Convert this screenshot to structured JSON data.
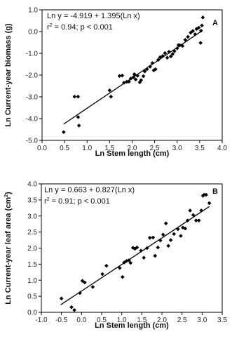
{
  "chart_data": [
    {
      "type": "scatter",
      "panel_label": "A",
      "xlabel": "Ln Stem length (cm)",
      "ylabel": "Ln Current-year biomass (g)",
      "equation": "Ln y = -4.919 + 1.395(Ln x)",
      "stats": "r² = 0.94; p < 0.001",
      "stats_parts": {
        "r": "r",
        "sup": "2",
        "rest": " = 0.94; p < 0.001"
      },
      "xlim": [
        0.0,
        4.0
      ],
      "ylim": [
        -5.0,
        1.0
      ],
      "xticks": [
        "0.0",
        "0.5",
        "1.0",
        "1.5",
        "2.0",
        "2.5",
        "3.0",
        "3.5",
        "4.0"
      ],
      "yticks": [
        "1.0",
        "0.0",
        "-1.0",
        "-2.0",
        "-3.0",
        "-4.0",
        "-5.0"
      ],
      "fit": {
        "intercept": -4.919,
        "slope": 1.395,
        "x_range": [
          0.48,
          3.55
        ]
      },
      "points": [
        [
          0.48,
          -4.62
        ],
        [
          0.72,
          -2.99
        ],
        [
          0.8,
          -2.99
        ],
        [
          0.8,
          -3.93
        ],
        [
          0.82,
          -4.32
        ],
        [
          1.5,
          -2.7
        ],
        [
          1.53,
          -2.99
        ],
        [
          1.72,
          -2.04
        ],
        [
          1.78,
          -2.02
        ],
        [
          1.82,
          -2.35
        ],
        [
          1.88,
          -2.31
        ],
        [
          1.93,
          -2.3
        ],
        [
          1.97,
          -2.16
        ],
        [
          2.03,
          -2.1
        ],
        [
          2.05,
          -1.96
        ],
        [
          2.08,
          -2.2
        ],
        [
          2.12,
          -2.03
        ],
        [
          2.17,
          -2.33
        ],
        [
          2.2,
          -2.23
        ],
        [
          2.25,
          -2.05
        ],
        [
          2.28,
          -1.83
        ],
        [
          2.33,
          -1.73
        ],
        [
          2.4,
          -1.61
        ],
        [
          2.45,
          -1.45
        ],
        [
          2.48,
          -1.78
        ],
        [
          2.52,
          -1.73
        ],
        [
          2.58,
          -1.3
        ],
        [
          2.62,
          -1.18
        ],
        [
          2.68,
          -1.12
        ],
        [
          2.73,
          -0.99
        ],
        [
          2.78,
          -1.2
        ],
        [
          2.82,
          -0.93
        ],
        [
          2.86,
          -1.14
        ],
        [
          2.9,
          -1.03
        ],
        [
          2.94,
          -0.9
        ],
        [
          3.0,
          -0.77
        ],
        [
          3.03,
          -0.62
        ],
        [
          3.06,
          -0.63
        ],
        [
          3.12,
          -0.66
        ],
        [
          3.18,
          -0.38
        ],
        [
          3.24,
          -0.24
        ],
        [
          3.3,
          -0.05
        ],
        [
          3.35,
          0.03
        ],
        [
          3.4,
          -0.12
        ],
        [
          3.43,
          0.12
        ],
        [
          3.48,
          0.18
        ],
        [
          3.52,
          -0.52
        ],
        [
          3.53,
          0.04
        ],
        [
          3.55,
          0.28
        ],
        [
          3.57,
          0.65
        ]
      ]
    },
    {
      "type": "scatter",
      "panel_label": "B",
      "xlabel": "Ln Stem length (cm)",
      "ylabel": "Ln Current-year leaf area (cm²)",
      "ylabel_parts": {
        "main": "Ln Current-year leaf area (cm",
        "sup": "2",
        "end": ")"
      },
      "equation": "Ln y = 0.663 + 0.827(Ln x)",
      "stats": "r² = 0.91; p < 0.001",
      "stats_parts": {
        "r": "r",
        "sup": "2",
        "rest": " = 0.91; p < 0.001"
      },
      "xlim": [
        -1.0,
        3.5
      ],
      "ylim": [
        0.0,
        4.0
      ],
      "xticks": [
        "-1.0",
        "-0.5",
        "0.0",
        "0.5",
        "1.0",
        "1.5",
        "2.0",
        "2.5",
        "3.0",
        "3.5"
      ],
      "yticks": [
        "4.0",
        "3.5",
        "3.0",
        "2.5",
        "2.0",
        "1.5",
        "1.0",
        "0.5",
        "0.0"
      ],
      "fit": {
        "intercept": 0.663,
        "slope": 0.827,
        "x_range": [
          -0.52,
          3.18
        ]
      },
      "points": [
        [
          -0.5,
          0.43
        ],
        [
          -0.25,
          0.16
        ],
        [
          -0.18,
          0.07
        ],
        [
          -0.04,
          0.6
        ],
        [
          0.02,
          0.98
        ],
        [
          0.08,
          0.93
        ],
        [
          0.28,
          0.79
        ],
        [
          0.52,
          1.19
        ],
        [
          0.62,
          1.45
        ],
        [
          0.95,
          1.38
        ],
        [
          1.02,
          1.1
        ],
        [
          1.06,
          1.55
        ],
        [
          1.12,
          1.6
        ],
        [
          1.18,
          1.62
        ],
        [
          1.22,
          1.54
        ],
        [
          1.28,
          2.01
        ],
        [
          1.33,
          1.98
        ],
        [
          1.38,
          2.02
        ],
        [
          1.48,
          1.92
        ],
        [
          1.55,
          1.7
        ],
        [
          1.63,
          2.0
        ],
        [
          1.7,
          2.32
        ],
        [
          1.78,
          2.33
        ],
        [
          1.83,
          1.76
        ],
        [
          1.9,
          2.02
        ],
        [
          1.96,
          2.24
        ],
        [
          2.03,
          2.42
        ],
        [
          2.1,
          2.77
        ],
        [
          2.16,
          2.07
        ],
        [
          2.22,
          2.25
        ],
        [
          2.3,
          2.44
        ],
        [
          2.4,
          2.59
        ],
        [
          2.47,
          2.38
        ],
        [
          2.52,
          2.64
        ],
        [
          2.58,
          2.61
        ],
        [
          2.64,
          2.86
        ],
        [
          2.7,
          3.17
        ],
        [
          2.78,
          3.03
        ],
        [
          2.85,
          2.86
        ],
        [
          2.92,
          2.86
        ],
        [
          2.98,
          3.17
        ],
        [
          3.02,
          3.63
        ],
        [
          3.05,
          3.66
        ],
        [
          3.1,
          3.66
        ],
        [
          3.18,
          3.4
        ]
      ]
    }
  ]
}
